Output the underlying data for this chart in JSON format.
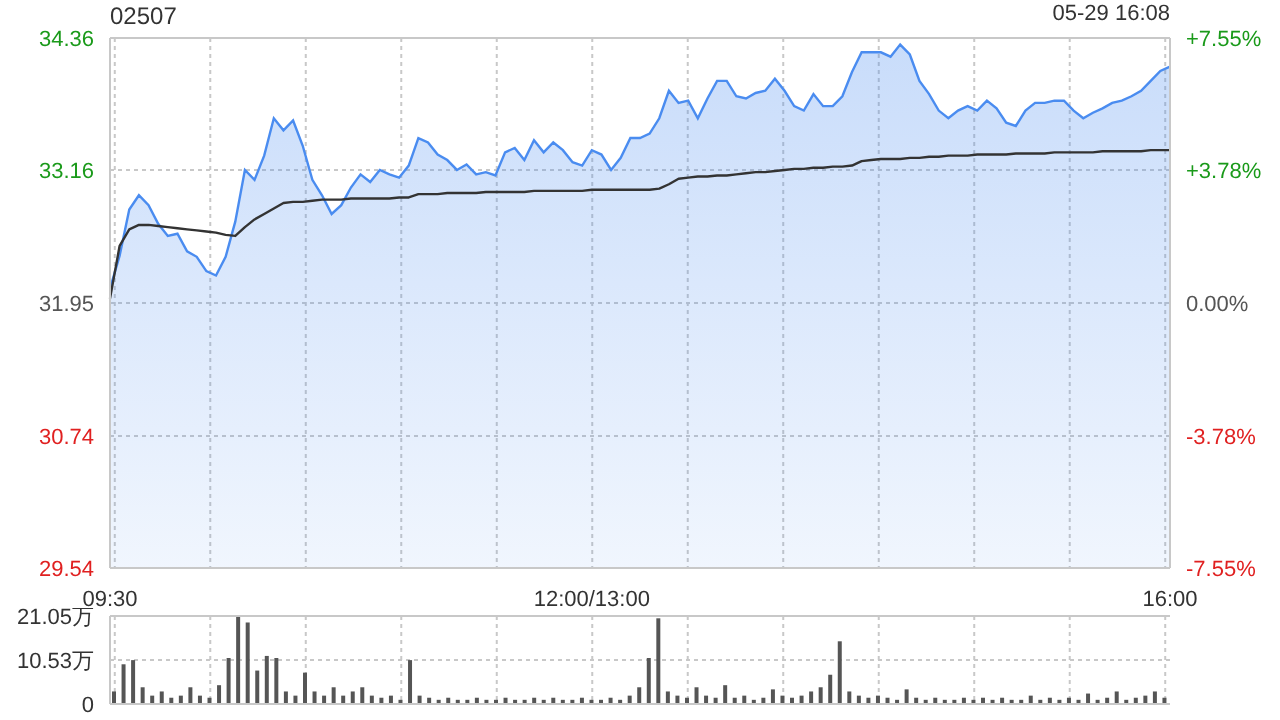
{
  "chart_data": [
    {
      "type": "area",
      "title": "02507",
      "annotations": [
        "05-29 16:08"
      ],
      "categories": [
        "09:30",
        null,
        null,
        null,
        null,
        null,
        null,
        null,
        null,
        null,
        null,
        null,
        null,
        null,
        null,
        null,
        null,
        null,
        null,
        null,
        null,
        null,
        null,
        null,
        null,
        null,
        null,
        null,
        null,
        null,
        null,
        null,
        null,
        null,
        null,
        null,
        null,
        null,
        null,
        null,
        null,
        null,
        null,
        null,
        null,
        null,
        null,
        null,
        null,
        null,
        "12:00/13:00",
        null,
        null,
        null,
        null,
        null,
        null,
        null,
        null,
        null,
        null,
        null,
        null,
        null,
        null,
        null,
        null,
        null,
        null,
        null,
        null,
        null,
        null,
        null,
        null,
        null,
        null,
        null,
        null,
        null,
        null,
        null,
        null,
        null,
        null,
        null,
        null,
        null,
        null,
        null,
        null,
        null,
        null,
        null,
        null,
        null,
        null,
        null,
        null,
        null,
        null,
        null,
        null,
        null,
        null,
        null,
        null,
        null,
        null,
        null,
        "16:00"
      ],
      "series": [
        {
          "color": "#4a8cf0",
          "values": [
            32.08,
            32.38,
            32.8,
            32.93,
            32.84,
            32.67,
            32.56,
            32.58,
            32.42,
            32.37,
            32.24,
            32.2,
            32.37,
            32.69,
            33.16,
            33.07,
            33.29,
            33.63,
            33.52,
            33.61,
            33.38,
            33.07,
            32.93,
            32.76,
            32.84,
            33.0,
            33.12,
            33.05,
            33.16,
            33.12,
            33.09,
            33.2,
            33.45,
            33.41,
            33.3,
            33.25,
            33.16,
            33.21,
            33.12,
            33.14,
            33.11,
            33.32,
            33.36,
            33.25,
            33.43,
            33.32,
            33.41,
            33.34,
            33.23,
            33.2,
            33.34,
            33.3,
            33.16,
            33.27,
            33.45,
            33.45,
            33.49,
            33.63,
            33.88,
            33.77,
            33.79,
            33.63,
            33.81,
            33.97,
            33.97,
            33.83,
            33.81,
            33.86,
            33.88,
            33.99,
            33.88,
            33.74,
            33.7,
            33.85,
            33.74,
            33.74,
            33.83,
            34.05,
            34.23,
            34.23,
            34.23,
            34.19,
            34.3,
            34.21,
            33.97,
            33.85,
            33.7,
            33.63,
            33.7,
            33.74,
            33.7,
            33.79,
            33.72,
            33.59,
            33.56,
            33.7,
            33.77,
            33.77,
            33.79,
            33.79,
            33.7,
            33.63,
            33.68,
            33.72,
            33.77,
            33.79,
            33.83,
            33.88,
            33.97,
            34.06,
            34.1
          ]
        },
        {
          "type": "line",
          "color": "#333333",
          "values": [
            31.99,
            32.47,
            32.62,
            32.66,
            32.66,
            32.65,
            32.64,
            32.63,
            32.62,
            32.61,
            32.6,
            32.59,
            32.57,
            32.56,
            32.64,
            32.71,
            32.76,
            32.81,
            32.86,
            32.87,
            32.87,
            32.88,
            32.89,
            32.89,
            32.89,
            32.9,
            32.9,
            32.9,
            32.9,
            32.9,
            32.91,
            32.91,
            32.94,
            32.94,
            32.94,
            32.95,
            32.95,
            32.95,
            32.95,
            32.96,
            32.96,
            32.96,
            32.96,
            32.96,
            32.97,
            32.97,
            32.97,
            32.97,
            32.97,
            32.97,
            32.98,
            32.98,
            32.98,
            32.98,
            32.98,
            32.98,
            32.98,
            32.99,
            33.03,
            33.08,
            33.09,
            33.1,
            33.1,
            33.11,
            33.11,
            33.12,
            33.13,
            33.14,
            33.14,
            33.15,
            33.16,
            33.17,
            33.17,
            33.18,
            33.18,
            33.19,
            33.19,
            33.2,
            33.24,
            33.25,
            33.26,
            33.26,
            33.26,
            33.27,
            33.27,
            33.28,
            33.28,
            33.29,
            33.29,
            33.29,
            33.3,
            33.3,
            33.3,
            33.3,
            33.31,
            33.31,
            33.31,
            33.31,
            33.32,
            33.32,
            33.32,
            33.32,
            33.32,
            33.33,
            33.33,
            33.33,
            33.33,
            33.33,
            33.34,
            33.34,
            33.34
          ]
        }
      ],
      "ylim": [
        29.54,
        34.36
      ],
      "yticks": [
        29.54,
        30.74,
        31.95,
        33.16,
        34.36
      ],
      "y2lim": [
        -7.55,
        7.55
      ],
      "y2ticks": [
        {
          "value": -7.55,
          "label": "-7.55%"
        },
        {
          "value": -3.78,
          "label": "-3.78%"
        },
        {
          "value": 0,
          "label": "0.00%"
        },
        {
          "value": 3.78,
          "label": "+3.78%"
        },
        {
          "value": 7.55,
          "label": "+7.55%"
        }
      ],
      "grid": true
    },
    {
      "type": "bar",
      "categories": [
        null,
        null,
        null,
        null,
        null,
        null,
        null,
        null,
        null,
        null,
        null,
        null,
        null,
        null,
        null,
        null,
        null,
        null,
        null,
        null,
        null,
        null,
        null,
        null,
        null,
        null,
        null,
        null,
        null,
        null,
        null,
        null,
        null,
        null,
        null,
        null,
        null,
        null,
        null,
        null,
        null,
        null,
        null,
        null,
        null,
        null,
        null,
        null,
        null,
        null,
        null,
        null,
        null,
        null,
        null,
        null,
        null,
        null,
        null,
        null,
        null,
        null,
        null,
        null,
        null,
        null,
        null,
        null,
        null,
        null,
        null,
        null,
        null,
        null,
        null,
        null,
        null,
        null,
        null,
        null,
        null,
        null,
        null,
        null,
        null,
        null,
        null,
        null,
        null,
        null,
        null,
        null,
        null,
        null,
        null,
        null,
        null,
        null,
        null,
        null,
        null,
        null,
        null,
        null,
        null,
        null,
        null,
        null,
        null,
        null,
        null
      ],
      "color": "#555555",
      "values": [
        3,
        9.5,
        10.5,
        4,
        2,
        3,
        1.5,
        2,
        4,
        2,
        1.5,
        4.5,
        11,
        21,
        19.5,
        8,
        11.5,
        11,
        3,
        2,
        7.5,
        3,
        2,
        4,
        2,
        3,
        4,
        2,
        1.5,
        2,
        1,
        10.5,
        2,
        1.5,
        1,
        1.5,
        1,
        1,
        1.5,
        1,
        1,
        1.5,
        1,
        1,
        1.5,
        1,
        1.5,
        1,
        1,
        1.5,
        1,
        1,
        1.5,
        1,
        2,
        4,
        11,
        20.5,
        3,
        2,
        1.5,
        4,
        2,
        1.5,
        4.5,
        1.5,
        2,
        1,
        1.5,
        3.5,
        2,
        1.5,
        2,
        3,
        4,
        7,
        15,
        3,
        2,
        1.5,
        2,
        1.5,
        1,
        3.5,
        1.5,
        1,
        1.5,
        1,
        1,
        1.5,
        1,
        1.5,
        1,
        1.5,
        1,
        1,
        2,
        1,
        1.5,
        1,
        1.5,
        1,
        2.5,
        1,
        1.5,
        3,
        1,
        1.5,
        2,
        3,
        1.5
      ],
      "ylim": [
        0,
        21.05
      ],
      "yticks": [
        0,
        {
          "value": 10.53,
          "label": "10.53万"
        },
        {
          "value": 21.05,
          "label": "21.05万"
        }
      ],
      "grid": true,
      "tick_labels": "y"
    }
  ]
}
